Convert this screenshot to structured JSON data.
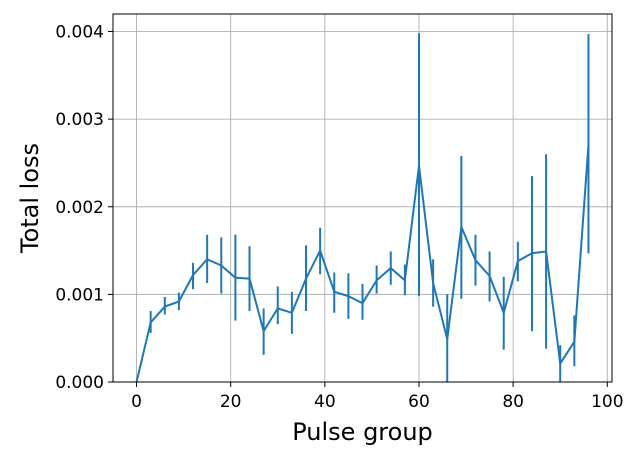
{
  "chart_data": {
    "type": "line",
    "title": "",
    "xlabel": "Pulse group",
    "ylabel": "Total loss",
    "xlim": [
      -5,
      101
    ],
    "ylim": [
      0,
      0.0042
    ],
    "xticks": [
      0,
      20,
      40,
      60,
      80,
      100
    ],
    "xtick_labels": [
      "0",
      "20",
      "40",
      "60",
      "80",
      "100"
    ],
    "yticks": [
      0,
      0.001,
      0.002,
      0.003,
      0.004
    ],
    "ytick_labels": [
      "0.000",
      "0.001",
      "0.002",
      "0.003",
      "0.004"
    ],
    "grid": true,
    "series": [
      {
        "color": "#1f77b4",
        "x": [
          0,
          3,
          6,
          9,
          12,
          15,
          18,
          21,
          24,
          27,
          30,
          33,
          36,
          39,
          42,
          45,
          48,
          51,
          54,
          57,
          60,
          63,
          66,
          69,
          72,
          75,
          78,
          81,
          84,
          87,
          90,
          93,
          96
        ],
        "y": [
          0.0,
          0.00068,
          0.00086,
          0.00092,
          0.00122,
          0.0014,
          0.00133,
          0.00119,
          0.00118,
          0.00058,
          0.00084,
          0.00079,
          0.00118,
          0.0015,
          0.00103,
          0.00098,
          0.0009,
          0.00116,
          0.0013,
          0.00116,
          0.00247,
          0.00113,
          0.00049,
          0.00177,
          0.00139,
          0.00121,
          0.00079,
          0.00138,
          0.00147,
          0.00149,
          0.00021,
          0.00046,
          0.00271
        ],
        "err_low": [
          0.0,
          0.00056,
          0.00077,
          0.00082,
          0.00106,
          0.00113,
          0.00101,
          0.0007,
          0.00081,
          0.00031,
          0.00066,
          0.00055,
          0.00081,
          0.00123,
          0.00079,
          0.00072,
          0.00071,
          0.00101,
          0.00111,
          0.00099,
          0.00098,
          0.00086,
          0.0,
          0.00095,
          0.0011,
          0.00092,
          0.00037,
          0.00115,
          0.00058,
          0.00038,
          0.0,
          0.00018,
          0.00147
        ],
        "err_high": [
          0.0,
          0.00081,
          0.00097,
          0.00102,
          0.00136,
          0.00168,
          0.00165,
          0.00168,
          0.00155,
          0.00084,
          0.00109,
          0.00103,
          0.00156,
          0.00176,
          0.00125,
          0.00124,
          0.00112,
          0.00133,
          0.00149,
          0.00134,
          0.00398,
          0.0014,
          0.001,
          0.00258,
          0.00168,
          0.00149,
          0.0012,
          0.0016,
          0.00235,
          0.0026,
          0.00042,
          0.00076,
          0.00397
        ]
      }
    ]
  }
}
